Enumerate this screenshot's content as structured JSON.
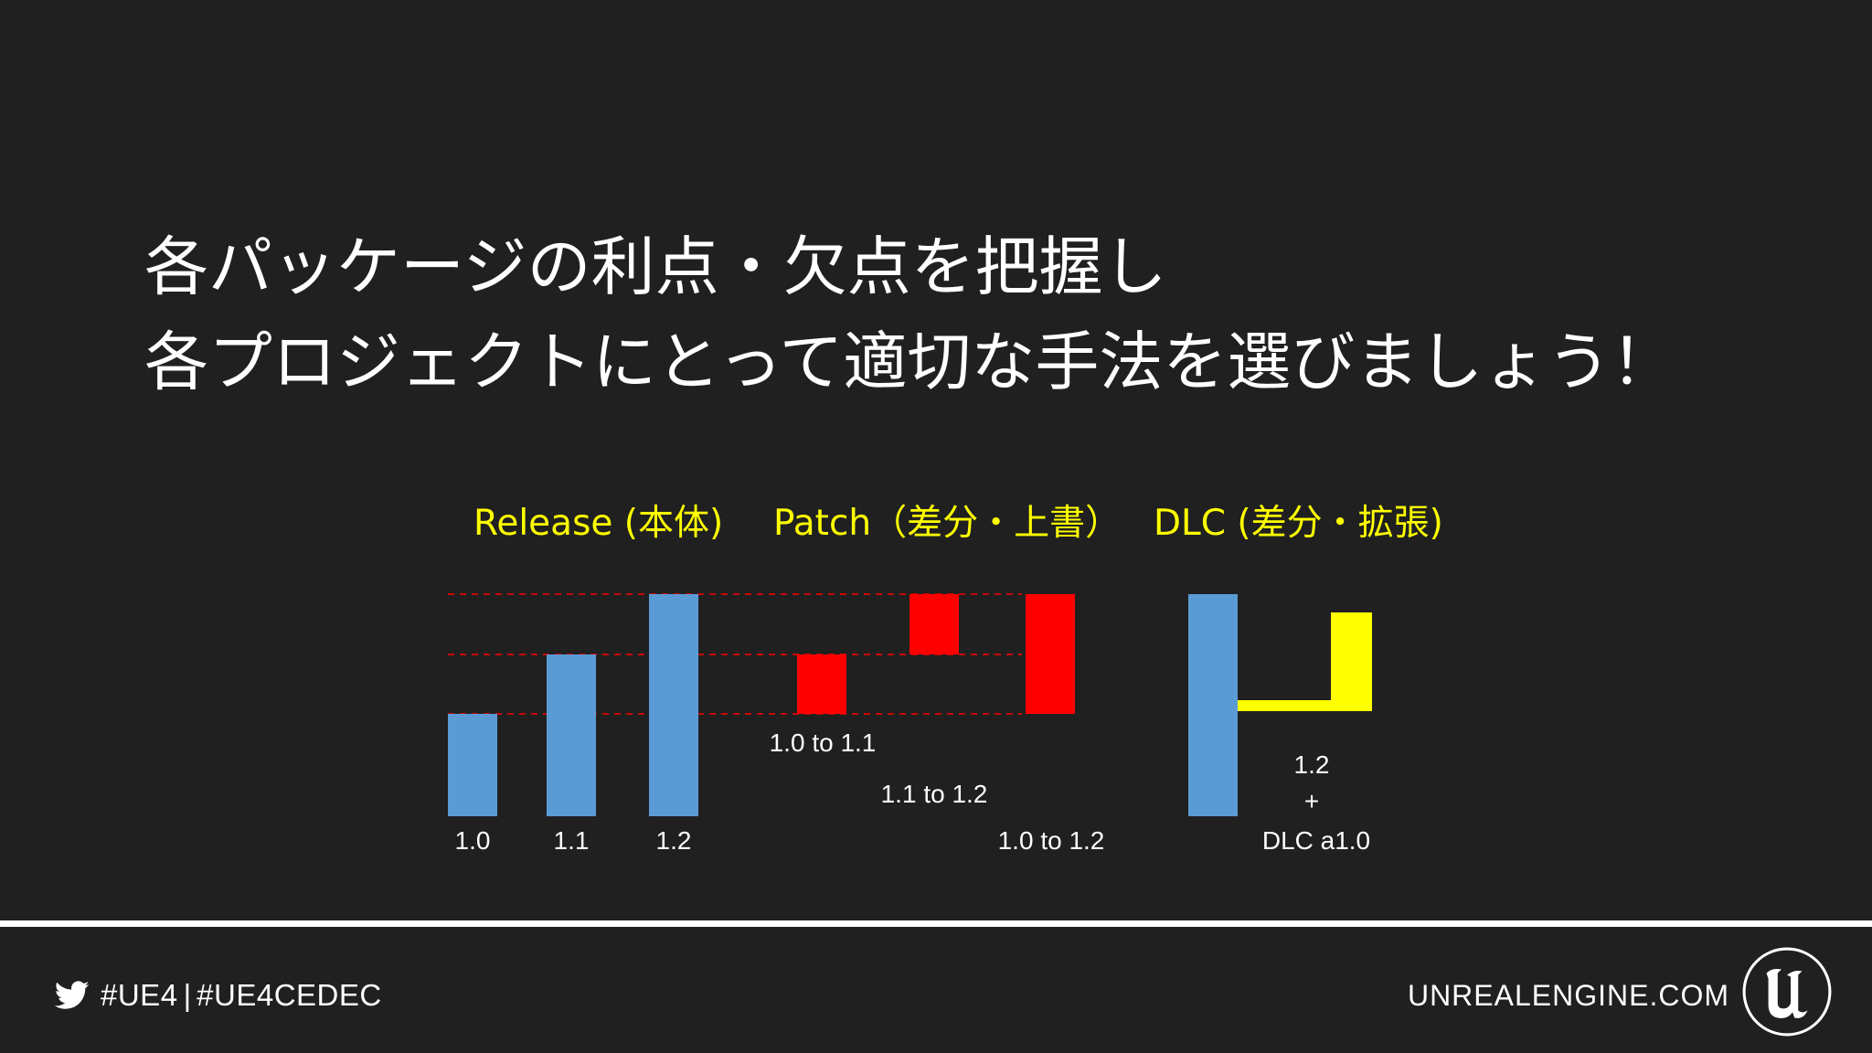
{
  "title": {
    "line1": "各パッケージの利点・欠点を把握し",
    "line2": "各プロジェクトにとって適切な手法を選びましょう！"
  },
  "diagram": {
    "categories": {
      "release": "Release (本体)",
      "patch": "Patch（差分・上書）",
      "dlc": "DLC (差分・拡張)"
    },
    "release_bars": [
      {
        "label": "1.0",
        "level": 1
      },
      {
        "label": "1.1",
        "level": 2
      },
      {
        "label": "1.2",
        "level": 3
      }
    ],
    "patch_blocks": [
      {
        "label": "1.0 to 1.1",
        "from_level": 1,
        "to_level": 2
      },
      {
        "label": "1.1 to 1.2",
        "from_level": 2,
        "to_level": 3
      },
      {
        "label": "1.0 to 1.2",
        "from_level": 1,
        "to_level": 3
      }
    ],
    "dlc": {
      "base_level": 3,
      "label_line1": "1.2",
      "label_line2": "+",
      "label_line3": "DLC a1.0"
    },
    "colors": {
      "release": "#5b9bd5",
      "patch": "#ff0000",
      "dlc": "#ffff00",
      "guide": "#ff0000",
      "label": "#ffff00",
      "text": "#ffffff"
    }
  },
  "footer": {
    "hashtag1": "#UE4",
    "separator": "|",
    "hashtag2": "#UE4CEDEC",
    "site": "UNREALENGINE.COM",
    "twitter_icon": "twitter-bird-icon",
    "logo_icon": "unreal-engine-logo-icon"
  }
}
